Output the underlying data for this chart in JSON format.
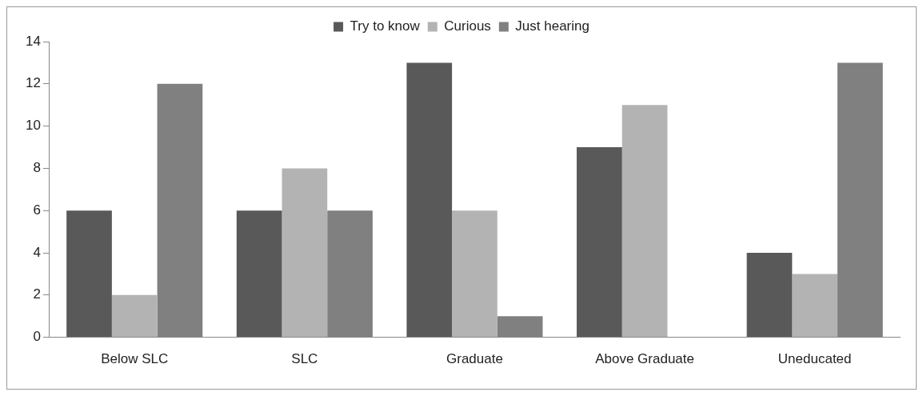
{
  "chart_data": {
    "type": "bar",
    "categories": [
      "Below SLC",
      "SLC",
      "Graduate",
      "Above Graduate",
      "Uneducated"
    ],
    "series": [
      {
        "name": "Try to know",
        "color": "#595959",
        "values": [
          6,
          6,
          13,
          9,
          4
        ]
      },
      {
        "name": "Curious",
        "color": "#b3b3b3",
        "values": [
          2,
          8,
          6,
          11,
          3
        ]
      },
      {
        "name": "Just hearing",
        "color": "#808080",
        "values": [
          12,
          6,
          1,
          0,
          13
        ]
      }
    ],
    "ylim": [
      0,
      14
    ],
    "yticks": [
      0,
      2,
      4,
      6,
      8,
      10,
      12,
      14
    ],
    "grid": false,
    "legend": "top"
  }
}
